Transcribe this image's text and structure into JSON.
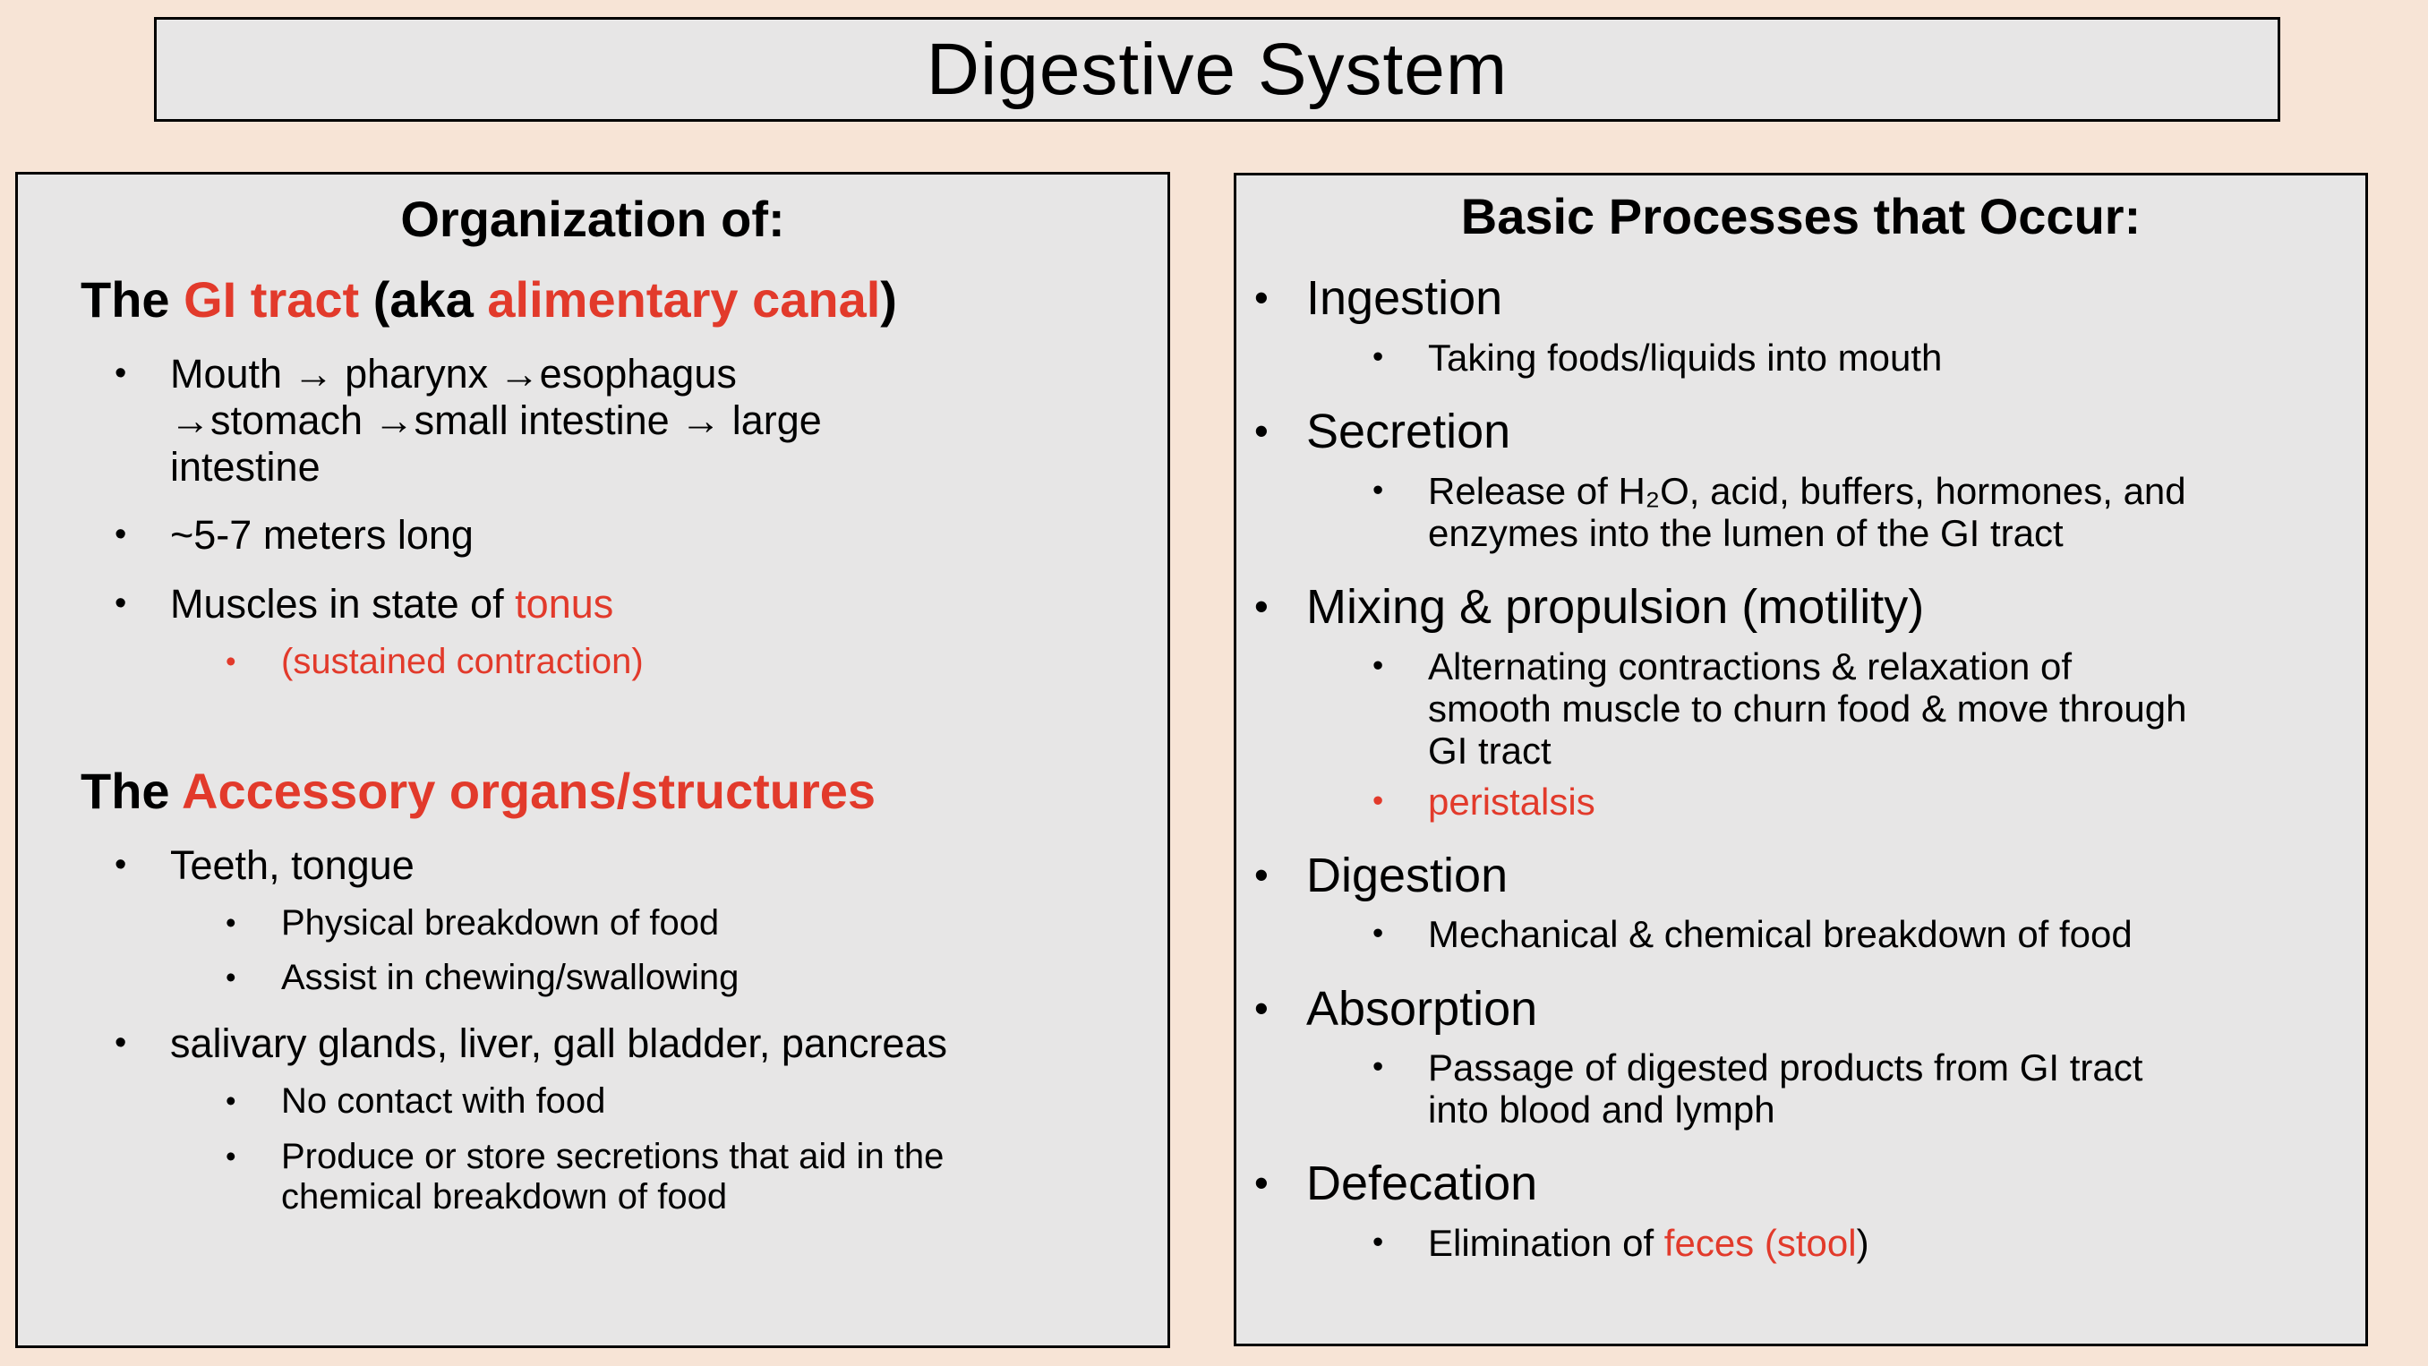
{
  "colors": {
    "background": "#F7E4D6",
    "panel_fill": "#E7E6E6",
    "border": "#000000",
    "text": "#000000",
    "accent_red": "#E23A2B"
  },
  "bullet_glyph": "•",
  "title": "Digestive System",
  "left_panel": {
    "heading": "Organization of:",
    "sections": [
      {
        "heading_segments": [
          {
            "text": "The ",
            "color": "black"
          },
          {
            "text": "GI tract ",
            "color": "red"
          },
          {
            "text": "(aka ",
            "color": "black"
          },
          {
            "text": "alimentary canal",
            "color": "red"
          },
          {
            "text": ")",
            "color": "black"
          }
        ],
        "bullets": [
          {
            "level": 1,
            "segments": [
              {
                "text": "Mouth → pharynx →esophagus\n→stomach →small intestine → large\nintestine",
                "color": "black"
              }
            ]
          },
          {
            "level": 1,
            "segments": [
              {
                "text": "~5-7 meters long",
                "color": "black"
              }
            ]
          },
          {
            "level": 1,
            "segments": [
              {
                "text": "Muscles in state of ",
                "color": "black"
              },
              {
                "text": "tonus",
                "color": "red"
              }
            ]
          },
          {
            "level": 2,
            "segments": [
              {
                "text": "(sustained contraction)",
                "color": "red"
              }
            ]
          }
        ]
      },
      {
        "heading_segments": [
          {
            "text": "The ",
            "color": "black"
          },
          {
            "text": "Accessory organs/structures",
            "color": "red"
          }
        ],
        "bullets": [
          {
            "level": 1,
            "segments": [
              {
                "text": "Teeth, tongue",
                "color": "black"
              }
            ]
          },
          {
            "level": 2,
            "segments": [
              {
                "text": "Physical breakdown of food",
                "color": "black"
              }
            ]
          },
          {
            "level": 2,
            "segments": [
              {
                "text": "Assist in chewing/swallowing",
                "color": "black"
              }
            ]
          },
          {
            "level": 1,
            "segments": [
              {
                "text": "salivary glands, liver, gall bladder, pancreas",
                "color": "black"
              }
            ]
          },
          {
            "level": 2,
            "segments": [
              {
                "text": "No contact with food",
                "color": "black"
              }
            ]
          },
          {
            "level": 2,
            "segments": [
              {
                "text": "Produce or store secretions that aid in the\nchemical breakdown of food",
                "color": "black"
              }
            ]
          }
        ]
      }
    ]
  },
  "right_panel": {
    "heading": "Basic Processes that Occur:",
    "bullets": [
      {
        "level": 1,
        "segments": [
          {
            "text": "Ingestion",
            "color": "black"
          }
        ]
      },
      {
        "level": 2,
        "segments": [
          {
            "text": "Taking foods/liquids into mouth",
            "color": "black"
          }
        ]
      },
      {
        "level": 1,
        "segments": [
          {
            "text": "Secretion",
            "color": "black"
          }
        ]
      },
      {
        "level": 2,
        "segments": [
          {
            "text": "Release of H₂O, acid, buffers, hormones, and\nenzymes into the lumen of the GI tract",
            "color": "black"
          }
        ]
      },
      {
        "level": 1,
        "segments": [
          {
            "text": "Mixing & propulsion (motility)",
            "color": "black"
          }
        ]
      },
      {
        "level": 2,
        "segments": [
          {
            "text": "Alternating contractions & relaxation of\nsmooth muscle to churn food & move through\nGI tract",
            "color": "black"
          }
        ]
      },
      {
        "level": 2,
        "segments": [
          {
            "text": "peristalsis",
            "color": "red"
          }
        ]
      },
      {
        "level": 1,
        "segments": [
          {
            "text": "Digestion",
            "color": "black"
          }
        ]
      },
      {
        "level": 2,
        "segments": [
          {
            "text": "Mechanical & chemical breakdown of food",
            "color": "black"
          }
        ]
      },
      {
        "level": 1,
        "segments": [
          {
            "text": "Absorption",
            "color": "black"
          }
        ]
      },
      {
        "level": 2,
        "segments": [
          {
            "text": "Passage of digested products from GI tract\ninto blood and lymph",
            "color": "black"
          }
        ]
      },
      {
        "level": 1,
        "segments": [
          {
            "text": "Defecation",
            "color": "black"
          }
        ]
      },
      {
        "level": 2,
        "segments": [
          {
            "text": "Elimination of ",
            "color": "black"
          },
          {
            "text": "feces ",
            "color": "red"
          },
          {
            "text": "(stool",
            "color": "red"
          },
          {
            "text": ")",
            "color": "black"
          }
        ]
      }
    ]
  }
}
